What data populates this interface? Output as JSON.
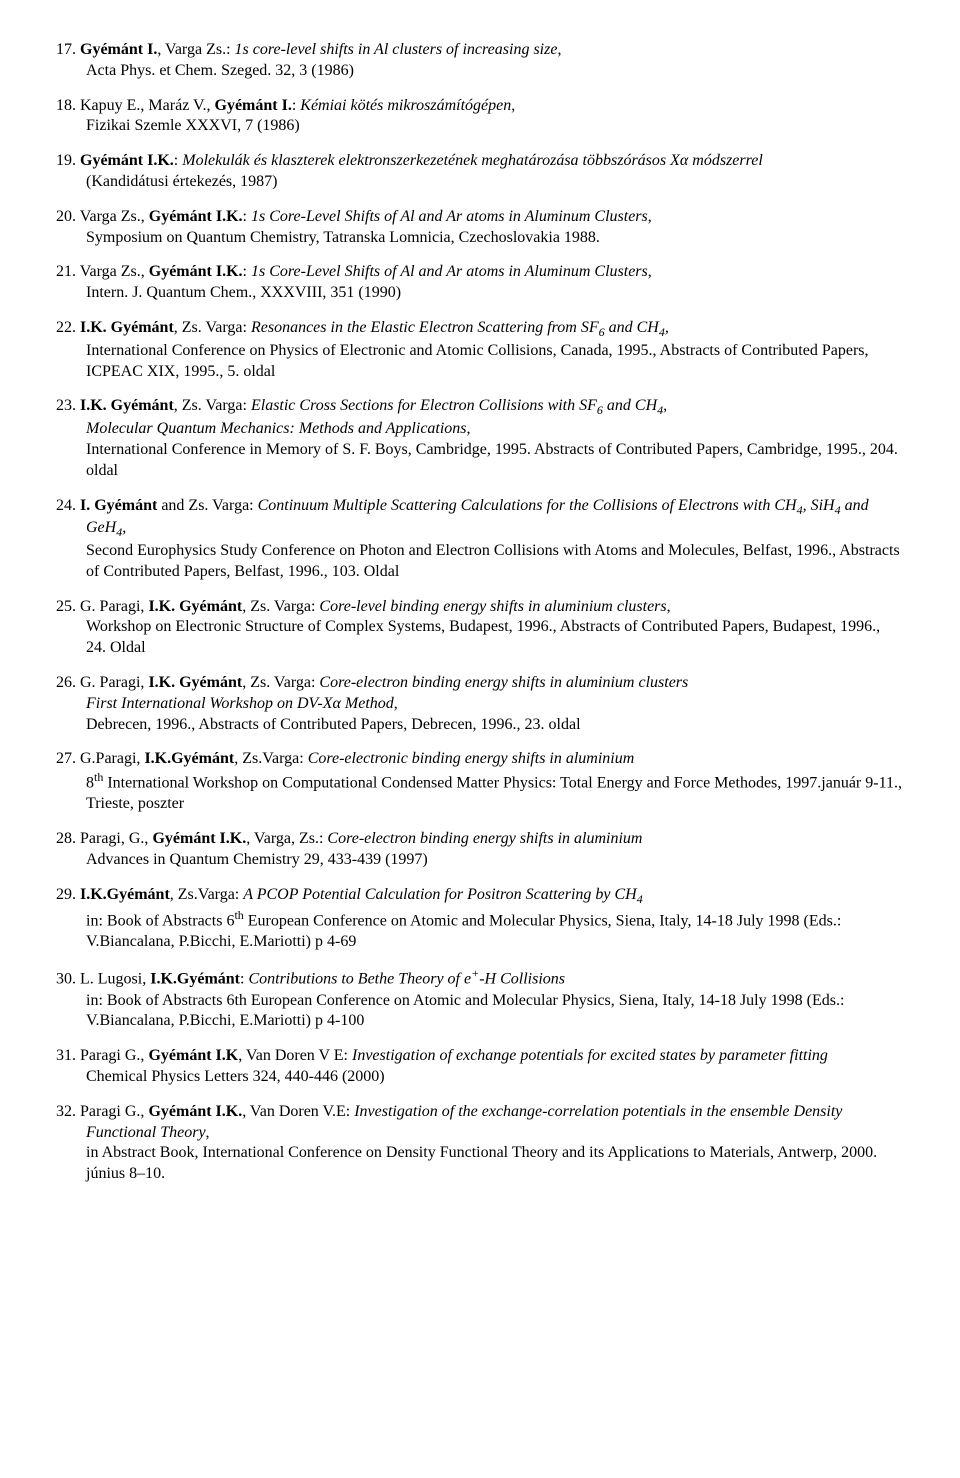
{
  "refs": [
    {
      "n": "17.",
      "lines": [
        [
          {
            "t": "Gyémánt I.",
            "cls": "b"
          },
          {
            "t": ", Varga Zs.: "
          },
          {
            "t": "1s core-level shifts in Al clusters of increasing size",
            "cls": "i"
          },
          {
            "t": ","
          }
        ],
        [
          {
            "t": "Acta Phys. et Chem. Szeged. 32, 3 (1986)"
          }
        ]
      ]
    },
    {
      "n": "18.",
      "lines": [
        [
          {
            "t": "Kapuy E., Maráz V., "
          },
          {
            "t": "Gyémánt I.",
            "cls": "b"
          },
          {
            "t": ": "
          },
          {
            "t": "Kémiai kötés mikroszámítógépen",
            "cls": "i"
          },
          {
            "t": ","
          }
        ],
        [
          {
            "t": "Fizikai Szemle XXXVI, 7 (1986)"
          }
        ]
      ]
    },
    {
      "n": "19.",
      "lines": [
        [
          {
            "t": "Gyémánt I.K.",
            "cls": "b"
          },
          {
            "t": ": "
          },
          {
            "t": "Molekulák és klaszterek elektronszerkezetének meghatározása többszórásos Xα módszerrel",
            "cls": "i"
          }
        ],
        [
          {
            "t": "(Kandidátusi értekezés, 1987)"
          }
        ]
      ]
    },
    {
      "n": "20.",
      "lines": [
        [
          {
            "t": "Varga Zs., "
          },
          {
            "t": "Gyémánt I.K.",
            "cls": "b"
          },
          {
            "t": ": "
          },
          {
            "t": "1s Core-Level Shifts of Al and Ar atoms in Aluminum Clusters",
            "cls": "i"
          },
          {
            "t": ","
          }
        ],
        [
          {
            "t": "Symposium on Quantum Chemistry, Tatranska Lomnicia, Czechoslovakia 1988."
          }
        ]
      ]
    },
    {
      "n": "21.",
      "lines": [
        [
          {
            "t": "Varga Zs., "
          },
          {
            "t": "Gyémánt I.K.",
            "cls": "b"
          },
          {
            "t": ": "
          },
          {
            "t": "1s Core-Level Shifts of Al and Ar atoms in Aluminum Clusters",
            "cls": "i"
          },
          {
            "t": ","
          }
        ],
        [
          {
            "t": "Intern. J. Quantum Chem., XXXVIII, 351 (1990)"
          }
        ]
      ]
    },
    {
      "n": "22.",
      "lines": [
        [
          {
            "t": "I.K. Gyémánt",
            "cls": "b"
          },
          {
            "t": ", Zs. Varga: "
          },
          {
            "t": "Resonances in the Elastic Electron Scattering from SF",
            "cls": "i"
          },
          {
            "t": "6",
            "cls": "i",
            "sub": true
          },
          {
            "t": " and CH",
            "cls": "i"
          },
          {
            "t": "4",
            "cls": "i",
            "sub": true
          },
          {
            "t": ",",
            "cls": "i"
          }
        ],
        [
          {
            "t": "International Conference on Physics of Electronic and Atomic Collisions, Canada, 1995., Abstracts of Contributed Papers, ICPEAC XIX, 1995., 5. oldal"
          }
        ]
      ]
    },
    {
      "n": "23.",
      "lines": [
        [
          {
            "t": "I.K. Gyémánt",
            "cls": "b"
          },
          {
            "t": ", Zs. Varga: "
          },
          {
            "t": "Elastic Cross Sections for Electron Collisions with SF",
            "cls": "i"
          },
          {
            "t": "6",
            "cls": "i",
            "sub": true
          },
          {
            "t": " and CH",
            "cls": "i"
          },
          {
            "t": "4",
            "cls": "i",
            "sub": true
          },
          {
            "t": ",",
            "cls": "i"
          }
        ],
        [
          {
            "t": "Molecular Quantum Mechanics: Methods and Applications",
            "cls": "i"
          },
          {
            "t": ","
          }
        ],
        [
          {
            "t": "International Conference in Memory of S. F. Boys, Cambridge, 1995. Abstracts of Contributed Papers, Cambridge, 1995., 204. oldal"
          }
        ]
      ]
    },
    {
      "n": "24.",
      "lines": [
        [
          {
            "t": "I. Gyémánt",
            "cls": "b"
          },
          {
            "t": " and Zs. Varga: "
          },
          {
            "t": "Continuum Multiple Scattering Calculations for the Collisions of Electrons with CH",
            "cls": "i"
          },
          {
            "t": "4",
            "cls": "i",
            "sub": true
          },
          {
            "t": ", SiH",
            "cls": "i"
          },
          {
            "t": "4",
            "cls": "i",
            "sub": true
          },
          {
            "t": " and GeH",
            "cls": "i"
          },
          {
            "t": "4",
            "cls": "i",
            "sub": true
          },
          {
            "t": ",",
            "cls": "i"
          }
        ],
        [
          {
            "t": "Second Europhysics Study Conference on Photon and Electron Collisions with Atoms and Molecules, Belfast, 1996., Abstracts of Contributed Papers, Belfast, 1996., 103. Oldal"
          }
        ]
      ]
    },
    {
      "n": "25.",
      "lines": [
        [
          {
            "t": "G. Paragi, "
          },
          {
            "t": "I.K. Gyémánt",
            "cls": "b"
          },
          {
            "t": ", Zs. Varga: "
          },
          {
            "t": "Core-level binding energy shifts in aluminium clusters",
            "cls": "i"
          },
          {
            "t": ","
          }
        ],
        [
          {
            "t": "Workshop on Electronic Structure of Complex Systems, Budapest, 1996., Abstracts of Contributed Papers, Budapest, 1996., 24. Oldal"
          }
        ]
      ]
    },
    {
      "n": "26.",
      "lines": [
        [
          {
            "t": "G. Paragi, "
          },
          {
            "t": "I.K. Gyémánt",
            "cls": "b"
          },
          {
            "t": ", Zs. Varga: "
          },
          {
            "t": "Core-electron binding energy shifts in aluminium clusters",
            "cls": "i"
          }
        ],
        [
          {
            "t": "First International Workshop on DV-Xα Method",
            "cls": "i"
          },
          {
            "t": ","
          }
        ],
        [
          {
            "t": "Debrecen, 1996., Abstracts of Contributed Papers, Debrecen, 1996., 23. oldal"
          }
        ]
      ]
    },
    {
      "n": "27.",
      "lines": [
        [
          {
            "t": "G.Paragi, "
          },
          {
            "t": "I.K.Gyémánt",
            "cls": "b"
          },
          {
            "t": ", Zs.Varga: "
          },
          {
            "t": "Core-electronic binding energy shifts in aluminium",
            "cls": "i"
          }
        ],
        [
          {
            "t": "8"
          },
          {
            "t": "th",
            "sup": true
          },
          {
            "t": " International Workshop on Computational Condensed Matter Physics: Total Energy and Force Methodes, 1997.január 9-11., Trieste, poszter"
          }
        ]
      ]
    },
    {
      "n": "28.",
      "lines": [
        [
          {
            "t": "Paragi, G., "
          },
          {
            "t": "Gyémánt I.K.",
            "cls": "b"
          },
          {
            "t": ", Varga, Zs.: "
          },
          {
            "t": "Core-electron binding energy shifts in aluminium",
            "cls": "i"
          }
        ],
        [
          {
            "t": "Advances in Quantum Chemistry 29, 433-439 (1997)"
          }
        ]
      ]
    },
    {
      "n": "29.",
      "lines": [
        [
          {
            "t": "I.K.Gyémánt",
            "cls": "b"
          },
          {
            "t": ", Zs.Varga: "
          },
          {
            "t": "A PCOP Potential Calculation for Positron Scattering by CH",
            "cls": "i"
          },
          {
            "t": "4",
            "cls": "i",
            "sub": true
          }
        ],
        [
          {
            "t": "in: Book of Abstracts 6"
          },
          {
            "t": "th",
            "sup": true
          },
          {
            "t": " European Conference on Atomic and Molecular Physics, Siena, Italy, 14-18 July 1998 (Eds.: V.Biancalana, P.Bicchi, E.Mariotti) p 4-69"
          }
        ]
      ]
    },
    {
      "n": "30.",
      "lines": [
        [
          {
            "t": "L. Lugosi, "
          },
          {
            "t": "I.K.Gyémánt",
            "cls": "b"
          },
          {
            "t": ": "
          },
          {
            "t": "Contributions to Bethe Theory of e",
            "cls": "i"
          },
          {
            "t": "+",
            "cls": "i",
            "sup": true
          },
          {
            "t": "-H Collisions",
            "cls": "i"
          }
        ],
        [
          {
            "t": "in: Book of Abstracts 6th European Conference on Atomic and Molecular Physics, Siena, Italy, 14-18 July 1998 (Eds.: V.Biancalana, P.Bicchi, E.Mariotti) p 4-100"
          }
        ]
      ]
    },
    {
      "n": "31.",
      "lines": [
        [
          {
            "t": "Paragi G., "
          },
          {
            "t": "Gyémánt I.K",
            "cls": "b"
          },
          {
            "t": ", Van Doren V E: "
          },
          {
            "t": "Investigation of exchange potentials for excited states by parameter fitting",
            "cls": "i"
          }
        ],
        [
          {
            "t": "Chemical Physics Letters 324, 440-446 (2000)"
          }
        ]
      ]
    },
    {
      "n": "32.",
      "lines": [
        [
          {
            "t": "Paragi G., "
          },
          {
            "t": "Gyémánt I.K.",
            "cls": "b"
          },
          {
            "t": ", Van Doren V.E: "
          },
          {
            "t": "Investigation of the exchange-correlation potentials in the ensemble Density Functional Theory",
            "cls": "i"
          },
          {
            "t": ","
          }
        ],
        [
          {
            "t": "in Abstract Book, International Conference on Density Functional Theory and its Applications to Materials, Antwerp, 2000. június 8–10."
          }
        ]
      ]
    }
  ]
}
